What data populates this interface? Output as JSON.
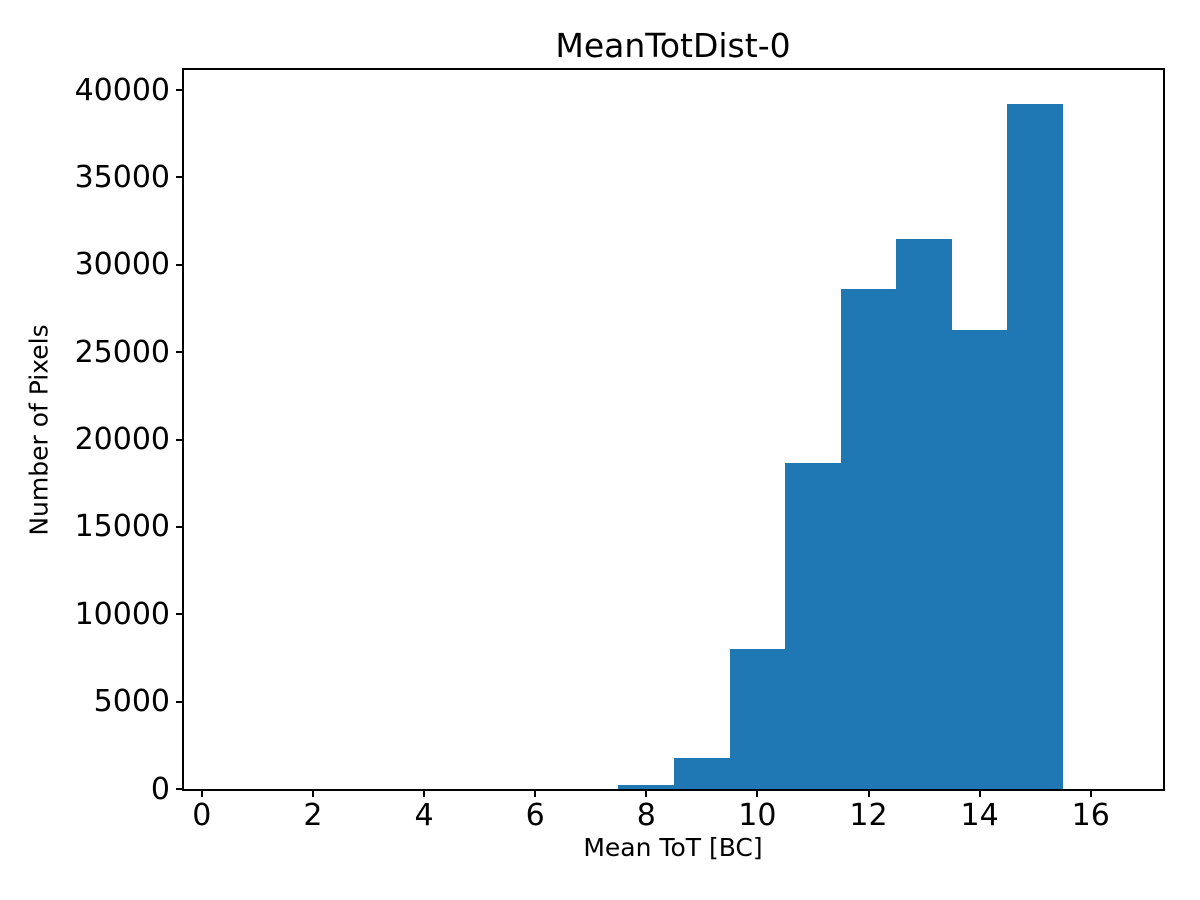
{
  "chart_data": {
    "type": "bar",
    "subtype": "histogram",
    "title": "MeanTotDist-0",
    "xlabel": "Mean ToT [BC]",
    "ylabel": "Number of Pixels",
    "bin_edges": [
      7.5,
      8.5,
      9.5,
      10.5,
      11.5,
      12.5,
      13.5,
      14.5,
      15.5
    ],
    "counts": [
      250,
      1800,
      8000,
      18650,
      28600,
      31500,
      26250,
      39200
    ],
    "xticks": [
      0,
      2,
      4,
      6,
      8,
      10,
      12,
      14,
      16
    ],
    "yticks": [
      0,
      5000,
      10000,
      15000,
      20000,
      25000,
      30000,
      35000,
      40000
    ],
    "xlim": [
      -0.32,
      17.3
    ],
    "ylim": [
      0,
      41150
    ],
    "bar_color": "#1f77b4",
    "axis_color": "#000000",
    "background_color": "#ffffff",
    "grid": false,
    "legend": "none"
  }
}
